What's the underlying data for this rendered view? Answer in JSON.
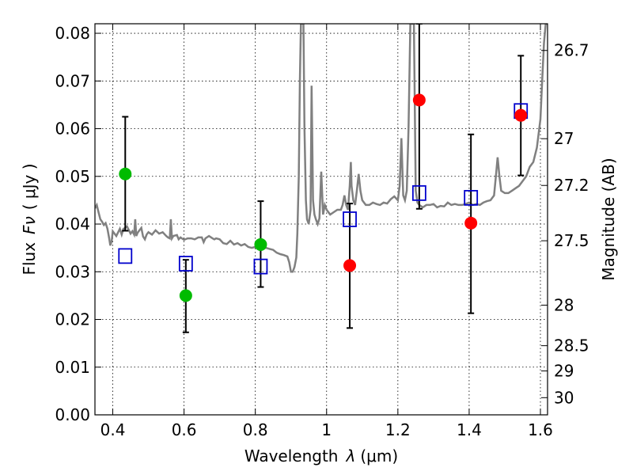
{
  "chart_data": {
    "type": "scatter",
    "xlabel": "Wavelength",
    "xlabel_symbol": "λ",
    "xlabel_unit": "(μm)",
    "ylabel": "Flux",
    "ylabel_symbol": "Fν",
    "ylabel_unit": "( μJy )",
    "ylabel_right": "Magnitude (AB)",
    "xlim": [
      0.35,
      1.62
    ],
    "ylim": [
      0.0,
      0.082
    ],
    "x_ticks": [
      0.4,
      0.6,
      0.8,
      1.0,
      1.2,
      1.4,
      1.6
    ],
    "x_tick_labels": [
      "0.4",
      "0.6",
      "0.8",
      "1",
      "1.2",
      "1.4",
      "1.6"
    ],
    "y_ticks": [
      0,
      0.01,
      0.02,
      0.03,
      0.04,
      0.05,
      0.06,
      0.07,
      0.08
    ],
    "y_tick_labels": [
      "0.00",
      "0.01",
      "0.02",
      "0.03",
      "0.04",
      "0.05",
      "0.06",
      "0.07",
      "0.08"
    ],
    "right_ticks": [
      {
        "label": "26.7",
        "flux": 0.0764
      },
      {
        "label": "27",
        "flux": 0.0579
      },
      {
        "label": "27.2",
        "flux": 0.0481
      },
      {
        "label": "27.5",
        "flux": 0.0365
      },
      {
        "label": "28",
        "flux": 0.023
      },
      {
        "label": "28.5",
        "flux": 0.0145
      },
      {
        "label": "29",
        "flux": 0.0092
      },
      {
        "label": "30",
        "flux": 0.0036
      }
    ],
    "grid": true,
    "colors": {
      "model": "#808080",
      "green": "#00bb00",
      "red": "#ff0000",
      "square": "#0000cc",
      "errorbar": "#000000"
    },
    "model_spectrum": [
      [
        0.35,
        0.0433
      ],
      [
        0.355,
        0.044
      ],
      [
        0.36,
        0.0425
      ],
      [
        0.365,
        0.041
      ],
      [
        0.37,
        0.0405
      ],
      [
        0.375,
        0.0398
      ],
      [
        0.38,
        0.0402
      ],
      [
        0.385,
        0.039
      ],
      [
        0.39,
        0.037
      ],
      [
        0.393,
        0.0355
      ],
      [
        0.397,
        0.0365
      ],
      [
        0.4,
        0.0385
      ],
      [
        0.41,
        0.0375
      ],
      [
        0.42,
        0.039
      ],
      [
        0.425,
        0.0378
      ],
      [
        0.43,
        0.039
      ],
      [
        0.435,
        0.0392
      ],
      [
        0.44,
        0.0395
      ],
      [
        0.45,
        0.038
      ],
      [
        0.455,
        0.0385
      ],
      [
        0.46,
        0.0378
      ],
      [
        0.463,
        0.041
      ],
      [
        0.466,
        0.0375
      ],
      [
        0.47,
        0.0382
      ],
      [
        0.48,
        0.0392
      ],
      [
        0.485,
        0.0374
      ],
      [
        0.49,
        0.0368
      ],
      [
        0.495,
        0.0378
      ],
      [
        0.5,
        0.0383
      ],
      [
        0.51,
        0.0378
      ],
      [
        0.52,
        0.0387
      ],
      [
        0.53,
        0.038
      ],
      [
        0.54,
        0.0383
      ],
      [
        0.55,
        0.0375
      ],
      [
        0.555,
        0.0372
      ],
      [
        0.56,
        0.037
      ],
      [
        0.563,
        0.041
      ],
      [
        0.566,
        0.037
      ],
      [
        0.57,
        0.0375
      ],
      [
        0.58,
        0.0377
      ],
      [
        0.585,
        0.0368
      ],
      [
        0.59,
        0.0372
      ],
      [
        0.6,
        0.0367
      ],
      [
        0.61,
        0.037
      ],
      [
        0.62,
        0.037
      ],
      [
        0.63,
        0.0368
      ],
      [
        0.64,
        0.0372
      ],
      [
        0.65,
        0.0372
      ],
      [
        0.655,
        0.0362
      ],
      [
        0.66,
        0.037
      ],
      [
        0.67,
        0.0375
      ],
      [
        0.68,
        0.037
      ],
      [
        0.685,
        0.0368
      ],
      [
        0.69,
        0.037
      ],
      [
        0.7,
        0.0368
      ],
      [
        0.71,
        0.036
      ],
      [
        0.72,
        0.0358
      ],
      [
        0.73,
        0.0365
      ],
      [
        0.74,
        0.0357
      ],
      [
        0.75,
        0.036
      ],
      [
        0.76,
        0.0355
      ],
      [
        0.77,
        0.0358
      ],
      [
        0.78,
        0.0352
      ],
      [
        0.79,
        0.035
      ],
      [
        0.8,
        0.0352
      ],
      [
        0.81,
        0.0352
      ],
      [
        0.82,
        0.035
      ],
      [
        0.83,
        0.035
      ],
      [
        0.84,
        0.0348
      ],
      [
        0.85,
        0.0346
      ],
      [
        0.86,
        0.034
      ],
      [
        0.87,
        0.0337
      ],
      [
        0.88,
        0.0335
      ],
      [
        0.89,
        0.0332
      ],
      [
        0.895,
        0.032
      ],
      [
        0.9,
        0.03
      ],
      [
        0.905,
        0.03
      ],
      [
        0.91,
        0.031
      ],
      [
        0.915,
        0.033
      ],
      [
        0.918,
        0.038
      ],
      [
        0.922,
        0.05
      ],
      [
        0.925,
        0.07
      ],
      [
        0.928,
        0.082
      ],
      [
        0.935,
        0.082
      ],
      [
        0.938,
        0.06
      ],
      [
        0.942,
        0.045
      ],
      [
        0.945,
        0.041
      ],
      [
        0.95,
        0.04
      ],
      [
        0.955,
        0.043
      ],
      [
        0.958,
        0.069
      ],
      [
        0.962,
        0.045
      ],
      [
        0.966,
        0.042
      ],
      [
        0.97,
        0.041
      ],
      [
        0.975,
        0.04
      ],
      [
        0.98,
        0.0412
      ],
      [
        0.985,
        0.051
      ],
      [
        0.99,
        0.042
      ],
      [
        0.995,
        0.044
      ],
      [
        1.0,
        0.043
      ],
      [
        1.01,
        0.042
      ],
      [
        1.02,
        0.0425
      ],
      [
        1.03,
        0.043
      ],
      [
        1.04,
        0.043
      ],
      [
        1.045,
        0.044
      ],
      [
        1.05,
        0.046
      ],
      [
        1.055,
        0.044
      ],
      [
        1.06,
        0.043
      ],
      [
        1.065,
        0.048
      ],
      [
        1.068,
        0.053
      ],
      [
        1.07,
        0.048
      ],
      [
        1.075,
        0.045
      ],
      [
        1.08,
        0.044
      ],
      [
        1.085,
        0.047
      ],
      [
        1.09,
        0.0505
      ],
      [
        1.095,
        0.047
      ],
      [
        1.1,
        0.045
      ],
      [
        1.11,
        0.044
      ],
      [
        1.12,
        0.044
      ],
      [
        1.13,
        0.0445
      ],
      [
        1.14,
        0.0442
      ],
      [
        1.15,
        0.044
      ],
      [
        1.16,
        0.0445
      ],
      [
        1.17,
        0.0443
      ],
      [
        1.18,
        0.0452
      ],
      [
        1.19,
        0.0458
      ],
      [
        1.2,
        0.045
      ],
      [
        1.205,
        0.048
      ],
      [
        1.21,
        0.058
      ],
      [
        1.215,
        0.046
      ],
      [
        1.22,
        0.045
      ],
      [
        1.225,
        0.047
      ],
      [
        1.23,
        0.06
      ],
      [
        1.235,
        0.082
      ],
      [
        1.245,
        0.082
      ],
      [
        1.25,
        0.047
      ],
      [
        1.255,
        0.0445
      ],
      [
        1.26,
        0.044
      ],
      [
        1.27,
        0.0435
      ],
      [
        1.28,
        0.044
      ],
      [
        1.29,
        0.044
      ],
      [
        1.3,
        0.0442
      ],
      [
        1.31,
        0.0435
      ],
      [
        1.32,
        0.0438
      ],
      [
        1.33,
        0.0437
      ],
      [
        1.34,
        0.0445
      ],
      [
        1.35,
        0.044
      ],
      [
        1.36,
        0.0442
      ],
      [
        1.37,
        0.044
      ],
      [
        1.38,
        0.044
      ],
      [
        1.39,
        0.0442
      ],
      [
        1.4,
        0.0445
      ],
      [
        1.41,
        0.044
      ],
      [
        1.42,
        0.0442
      ],
      [
        1.43,
        0.044
      ],
      [
        1.44,
        0.0445
      ],
      [
        1.45,
        0.0448
      ],
      [
        1.46,
        0.045
      ],
      [
        1.47,
        0.046
      ],
      [
        1.475,
        0.05
      ],
      [
        1.48,
        0.054
      ],
      [
        1.485,
        0.05
      ],
      [
        1.49,
        0.047
      ],
      [
        1.5,
        0.0465
      ],
      [
        1.51,
        0.0465
      ],
      [
        1.52,
        0.047
      ],
      [
        1.53,
        0.0475
      ],
      [
        1.54,
        0.048
      ],
      [
        1.55,
        0.049
      ],
      [
        1.56,
        0.05
      ],
      [
        1.57,
        0.052
      ],
      [
        1.58,
        0.053
      ],
      [
        1.59,
        0.056
      ],
      [
        1.6,
        0.062
      ],
      [
        1.605,
        0.07
      ],
      [
        1.61,
        0.078
      ],
      [
        1.615,
        0.082
      ],
      [
        1.62,
        0.082
      ]
    ],
    "green_points": [
      {
        "x": 0.435,
        "y": 0.0505
      },
      {
        "x": 0.605,
        "y": 0.025
      },
      {
        "x": 0.815,
        "y": 0.0357
      }
    ],
    "red_points": [
      {
        "x": 1.065,
        "y": 0.0313
      },
      {
        "x": 1.26,
        "y": 0.066
      },
      {
        "x": 1.405,
        "y": 0.0402
      },
      {
        "x": 1.545,
        "y": 0.0628
      }
    ],
    "error_bars": [
      {
        "x": 0.435,
        "low": 0.0386,
        "high": 0.0625
      },
      {
        "x": 0.605,
        "low": 0.0173,
        "high": 0.0325
      },
      {
        "x": 0.815,
        "low": 0.0268,
        "high": 0.0448
      },
      {
        "x": 1.065,
        "low": 0.0182,
        "high": 0.0443
      },
      {
        "x": 1.26,
        "low": 0.0432,
        "high": 0.082
      },
      {
        "x": 1.405,
        "low": 0.0213,
        "high": 0.0588
      },
      {
        "x": 1.545,
        "low": 0.0502,
        "high": 0.0753
      }
    ],
    "square_points": [
      {
        "x": 0.435,
        "y": 0.0333
      },
      {
        "x": 0.605,
        "y": 0.0317
      },
      {
        "x": 0.815,
        "y": 0.0311
      },
      {
        "x": 1.065,
        "y": 0.041
      },
      {
        "x": 1.26,
        "y": 0.0465
      },
      {
        "x": 1.405,
        "y": 0.0455
      },
      {
        "x": 1.545,
        "y": 0.0637
      }
    ]
  }
}
